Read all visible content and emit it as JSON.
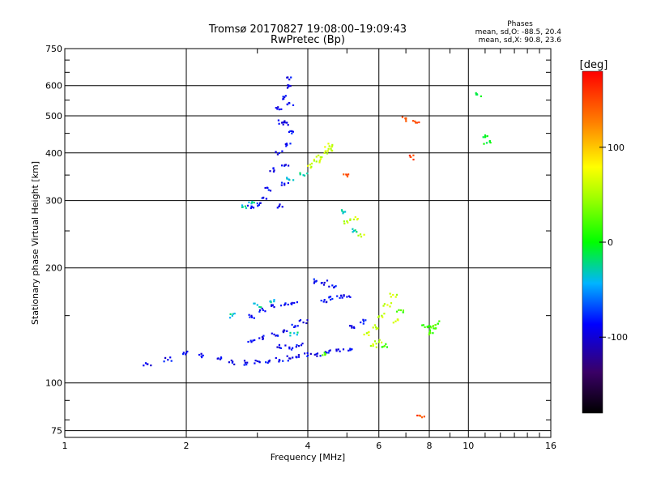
{
  "chart_data": {
    "type": "scatter",
    "title": "Tromsø 20170827 19:08:00–19:09:43",
    "subtitle": "RwPretec (Bp)",
    "stats": {
      "heading": "Phases",
      "line1": "mean, sd,O: -88.5, 20.4",
      "line2": "mean, sd,X:  90.8, 23.6"
    },
    "xlabel": "Frequency [MHz]",
    "ylabel": "Stationary phase Virtual Height [km]",
    "xscale": "log",
    "yscale": "log",
    "xlim": [
      1,
      16
    ],
    "ylim": [
      72,
      750
    ],
    "x_ticks": [
      "1",
      "2",
      "4",
      "6",
      "8",
      "10",
      "16"
    ],
    "y_ticks": [
      "75",
      "100",
      "200",
      "300",
      "400",
      "500",
      "600",
      "750"
    ],
    "grid": true,
    "colorbar": {
      "label": "[deg]",
      "range": [
        -180,
        180
      ],
      "ticks": [
        "100",
        "0",
        "-100"
      ]
    },
    "series": [
      {
        "phase": -90,
        "points": [
          [
            3.4,
            290
          ],
          [
            3.5,
            330
          ],
          [
            3.5,
            370
          ],
          [
            3.55,
            420
          ],
          [
            3.55,
            480
          ],
          [
            3.6,
            540
          ],
          [
            3.6,
            600
          ],
          [
            3.55,
            630
          ],
          [
            3.45,
            480
          ],
          [
            3.4,
            400
          ],
          [
            3.3,
            360
          ],
          [
            3.2,
            320
          ],
          [
            3.1,
            305
          ],
          [
            3.0,
            295
          ],
          [
            2.9,
            290
          ],
          [
            3.65,
            450
          ],
          [
            3.5,
            560
          ],
          [
            3.4,
            520
          ],
          [
            2.6,
            113
          ],
          [
            2.8,
            113
          ],
          [
            3.0,
            114
          ],
          [
            3.2,
            114
          ],
          [
            3.4,
            115
          ],
          [
            3.6,
            116
          ],
          [
            3.8,
            117
          ],
          [
            4.0,
            118
          ],
          [
            4.2,
            119
          ],
          [
            4.5,
            120
          ],
          [
            4.8,
            121
          ],
          [
            5.1,
            122
          ],
          [
            2.9,
            128
          ],
          [
            3.1,
            131
          ],
          [
            3.3,
            134
          ],
          [
            3.5,
            137
          ],
          [
            3.7,
            140
          ],
          [
            3.9,
            144
          ],
          [
            3.4,
            124
          ],
          [
            3.6,
            124
          ],
          [
            3.8,
            125
          ],
          [
            2.9,
            150
          ],
          [
            3.1,
            155
          ],
          [
            3.3,
            158
          ],
          [
            3.5,
            160
          ],
          [
            3.7,
            162
          ],
          [
            4.4,
            165
          ],
          [
            4.6,
            166
          ],
          [
            4.8,
            167
          ],
          [
            5.0,
            168
          ],
          [
            4.2,
            185
          ],
          [
            4.4,
            183
          ],
          [
            4.6,
            180
          ],
          [
            2.2,
            118
          ],
          [
            2.4,
            116
          ],
          [
            2.0,
            120
          ],
          [
            1.8,
            115
          ],
          [
            1.6,
            112
          ],
          [
            5.2,
            140
          ],
          [
            5.5,
            145
          ]
        ]
      },
      {
        "phase": 60,
        "points": [
          [
            4.2,
            380
          ],
          [
            4.3,
            390
          ],
          [
            4.4,
            400
          ],
          [
            4.5,
            410
          ],
          [
            4.6,
            420
          ],
          [
            4.0,
            370
          ],
          [
            5.0,
            265
          ],
          [
            5.2,
            268
          ],
          [
            5.4,
            245
          ],
          [
            5.6,
            135
          ],
          [
            5.9,
            140
          ],
          [
            6.1,
            150
          ],
          [
            6.3,
            160
          ],
          [
            6.5,
            170
          ],
          [
            6.6,
            145
          ],
          [
            5.8,
            125
          ],
          [
            6.0,
            128
          ]
        ]
      },
      {
        "phase": 20,
        "points": [
          [
            7.8,
            140
          ],
          [
            8.0,
            141
          ],
          [
            8.2,
            139
          ],
          [
            8.4,
            143
          ],
          [
            8.0,
            135
          ],
          [
            6.8,
            155
          ],
          [
            6.2,
            125
          ],
          [
            4.4,
            120
          ]
        ]
      },
      {
        "phase": -30,
        "points": [
          [
            2.8,
            290
          ],
          [
            2.9,
            295
          ],
          [
            3.6,
            340
          ],
          [
            3.9,
            350
          ],
          [
            3.0,
            160
          ],
          [
            3.3,
            165
          ],
          [
            2.6,
            150
          ],
          [
            4.9,
            280
          ],
          [
            5.2,
            250
          ],
          [
            3.7,
            135
          ]
        ]
      },
      {
        "phase": 150,
        "points": [
          [
            7.0,
            490
          ],
          [
            7.4,
            480
          ],
          [
            7.2,
            390
          ],
          [
            5.0,
            350
          ],
          [
            7.6,
            82
          ]
        ]
      },
      {
        "phase": -5,
        "points": [
          [
            10.5,
            570
          ],
          [
            11.0,
            440
          ],
          [
            11.1,
            425
          ]
        ]
      }
    ]
  }
}
